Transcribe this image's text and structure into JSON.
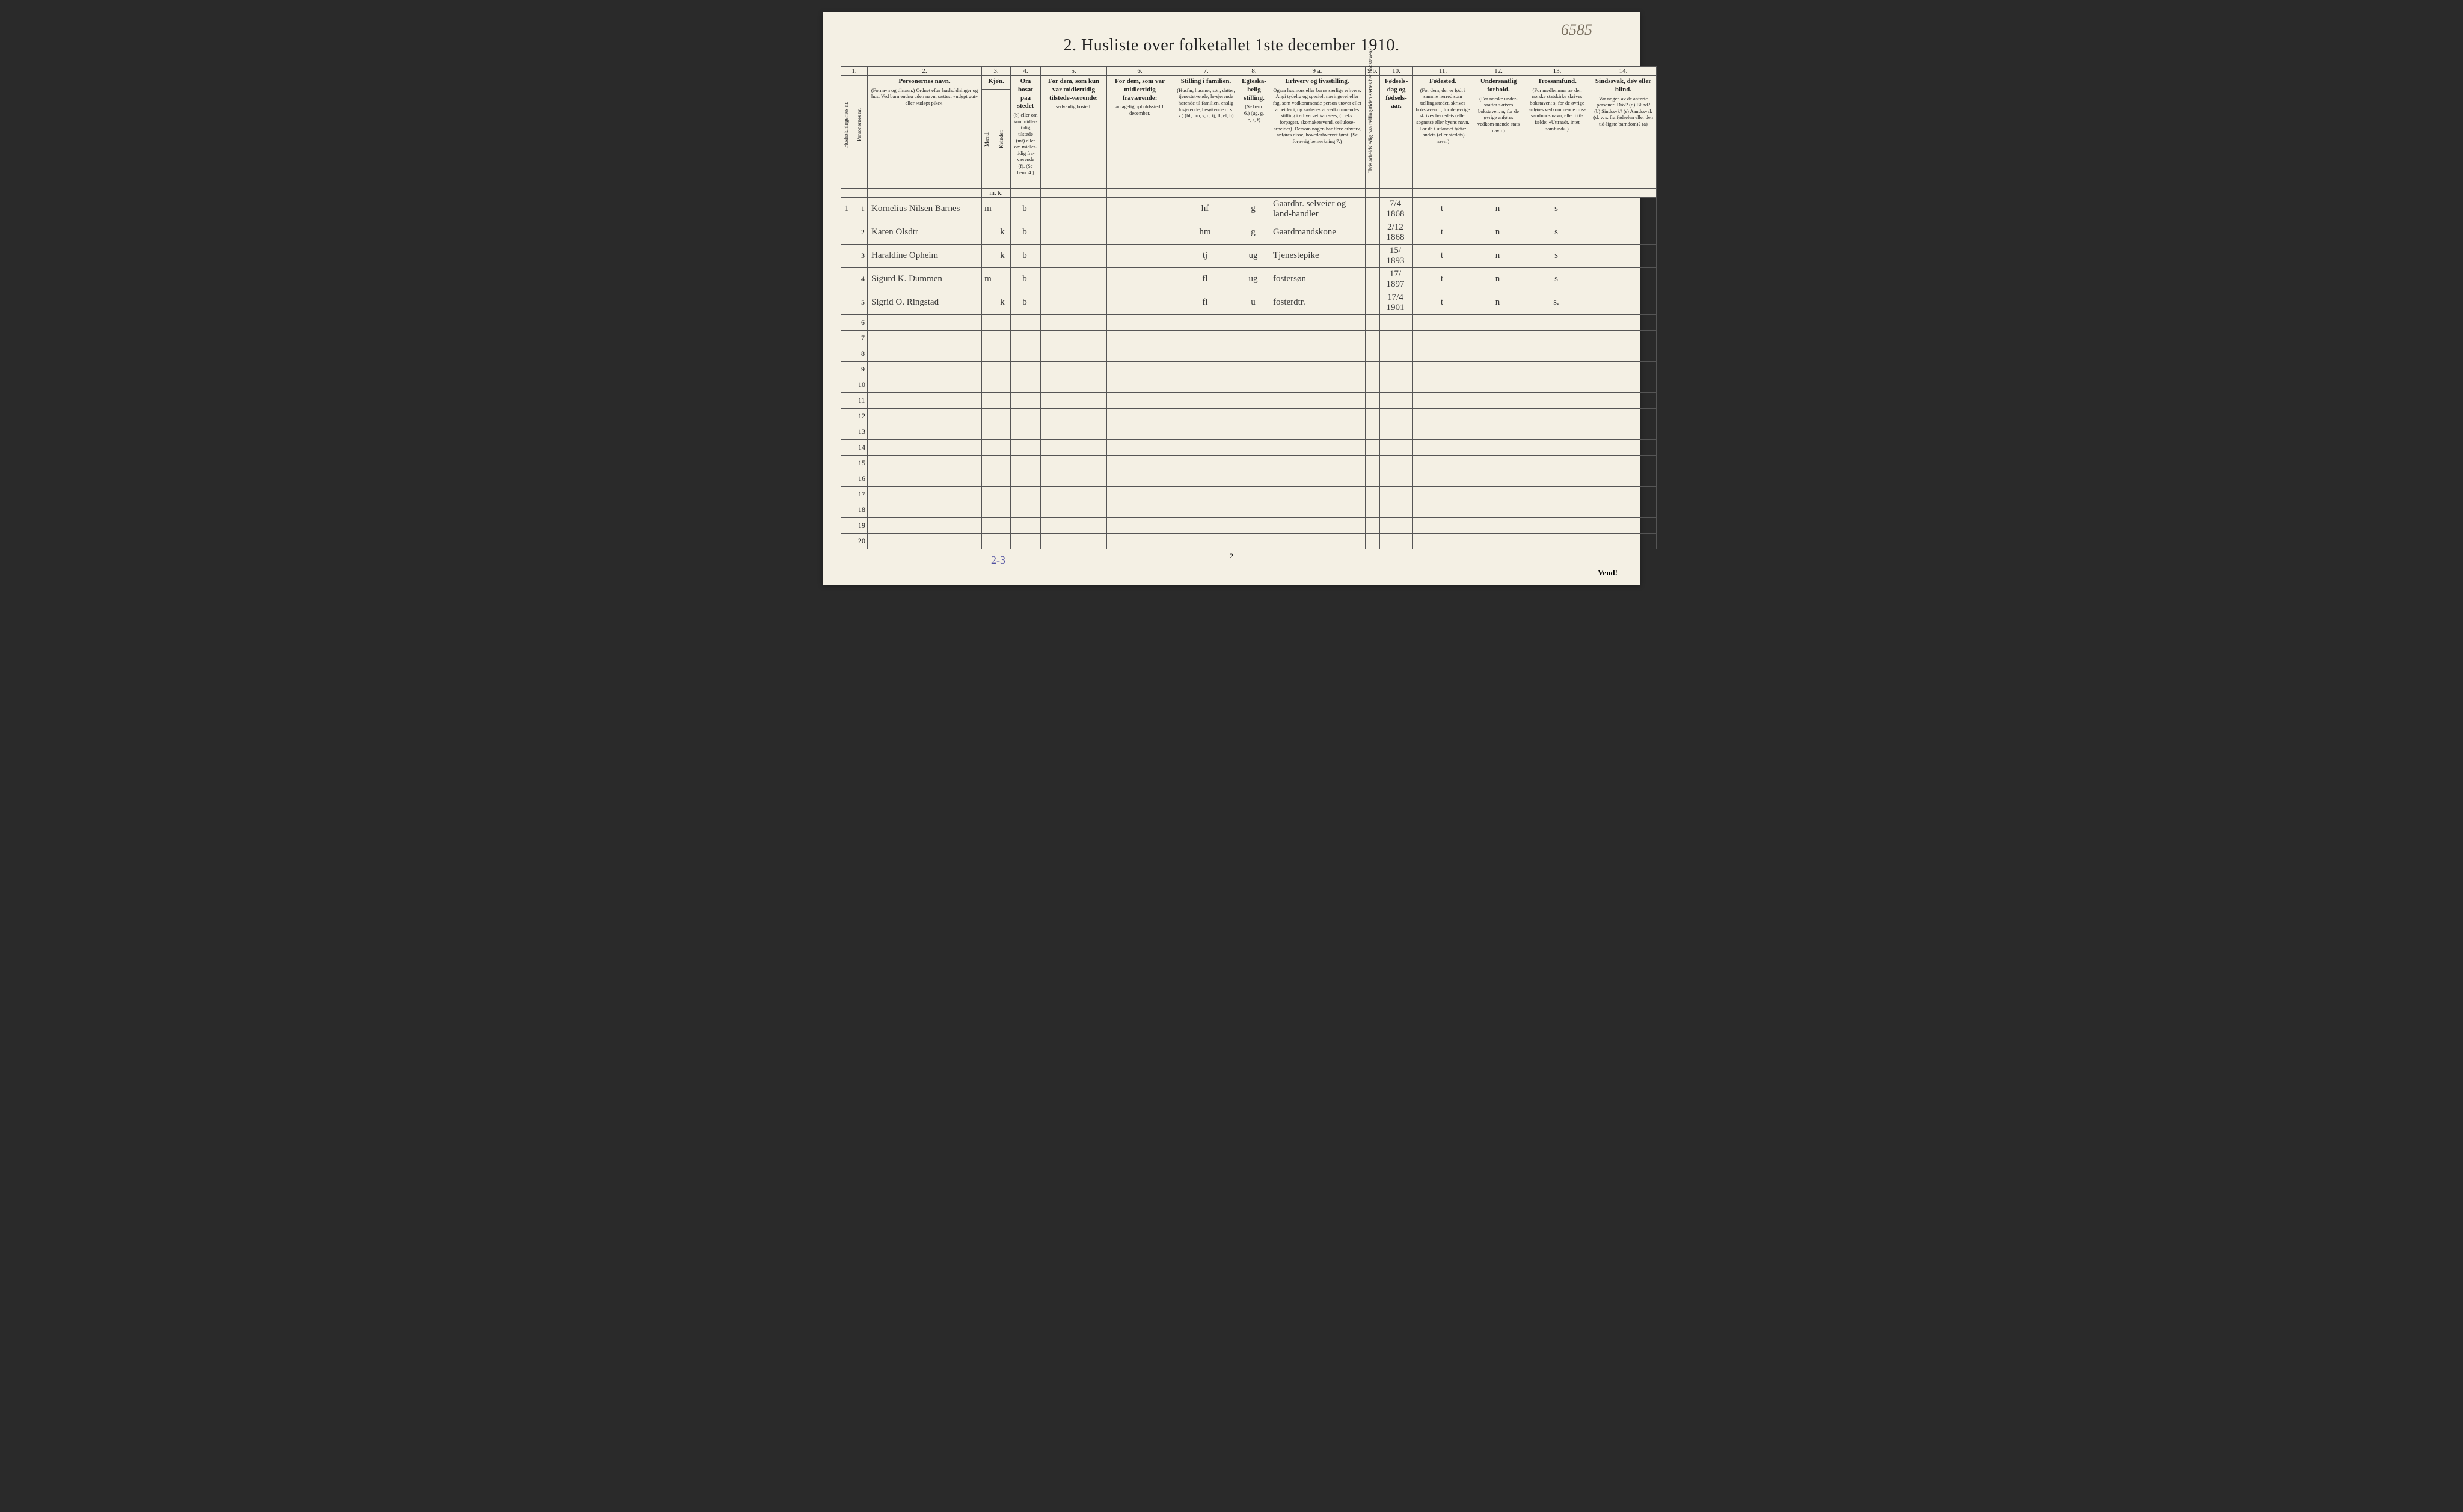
{
  "annotation_top_right": "6585",
  "title": "2. Husliste over folketallet 1ste december 1910.",
  "page_number": "2",
  "vend": "Vend!",
  "footer_annotation": "2-3",
  "column_numbers": [
    "1.",
    "",
    "2.",
    "3.",
    "4.",
    "5.",
    "6.",
    "7.",
    "8.",
    "9 a.",
    "9 b.",
    "10.",
    "11.",
    "12.",
    "13.",
    "14."
  ],
  "headers": {
    "c1": "Husholdningernes nr.",
    "c2": "Personernes nr.",
    "c3_main": "Personernes navn.",
    "c3_sub": "(Fornavn og tilnavn.)\nOrdnet efter husholdninger og hus.\nVed barn endnu uden navn, sættes: «udøpt gut» eller «udøpt pike».",
    "c4_main": "Kjøn.",
    "c4_m": "Mænd.",
    "c4_k": "Kvinder.",
    "c4_foot": "m.  k.",
    "c5_main": "Om bosat paa stedet",
    "c5_sub": "(b) eller om kun midler-tidig tilstede (mt) eller om midler-tidig fra-værende (f).\n(Se bem. 4.)",
    "c6_main": "For dem, som kun var midlertidig tilstede-værende:",
    "c6_sub": "sedvanlig bosted.",
    "c7_main": "For dem, som var midlertidig fraværende:",
    "c7_sub": "antagelig opholdssted 1 december.",
    "c8_main": "Stilling i familien.",
    "c8_sub": "(Husfar, husmor, søn, datter, tjenestetyende, lo-sjerende hørende til familien, enslig losjerende, besøkende o. s. v.)\n(hf, hm, s, d, tj, fl, el, b)",
    "c9_main": "Egteska-belig stilling.",
    "c9_sub": "(Se bem. 6.)\n(ug, g, e, s, f)",
    "c10_main": "Erhverv og livsstilling.",
    "c10_sub": "Ogsaa husmors eller barns særlige erhverv.\nAngi tydelig og specielt næringsvei eller fag, som vedkommende person utøver eller arbeider i, og saaledes at vedkommendes stilling i erhvervet kan sees, (f. eks. forpagter, skomakersvend, cellulose-arbeider). Dersom nogen har flere erhverv, anføres disse, hovederhvervet først.\n(Se forøvrig bemerkning 7.)",
    "c10b": "Hvis arbeidsledig paa tællingstiden sættes her bokstaven: l",
    "c11_main": "Fødsels-dag og fødsels-aar.",
    "c12_main": "Fødested.",
    "c12_sub": "(For dem, der er født i samme herred som tællingsstedet, skrives bokstaven: t; for de øvrige skrives herredets (eller sognets) eller byens navn.\nFor de i utlandet fødte: landets (eller stedets) navn.)",
    "c13_main": "Undersaatlig forhold.",
    "c13_sub": "(For norske under-saatter skrives bokstaven: n; for de øvrige anføres vedkom-mende stats navn.)",
    "c14_main": "Trossamfund.",
    "c14_sub": "(For medlemmer av den norske statskirke skrives bokstaven: s; for de øvrige anføres vedkommende tros-samfunds navn, eller i til-fælde: «Uttraadt, intet samfund».)",
    "c15_main": "Sindssvak, døv eller blind.",
    "c15_sub": "Var nogen av de anførte personer:\nDøv? (d)\nBlind? (b)\nSindssyk? (s)\nAandssvak (d. v. s. fra fødselen eller den tid-ligste barndom)? (a)"
  },
  "rows": [
    {
      "hh": "1",
      "pn": "1",
      "name": "Kornelius Nilsen Barnes",
      "sex": "m",
      "bosat": "b",
      "c6": "",
      "c7": "",
      "fam": "hf",
      "egt": "g",
      "erhverv": "Gaardbr. selveier og land-handler",
      "fdato": "7/4 1868",
      "fsted": "t",
      "und": "n",
      "tros": "s",
      "c15": ""
    },
    {
      "hh": "",
      "pn": "2",
      "name": "Karen Olsdtr",
      "sex": "k",
      "bosat": "b",
      "c6": "",
      "c7": "",
      "fam": "hm",
      "egt": "g",
      "erhverv": "Gaardmandskone",
      "fdato": "2/12 1868",
      "fsted": "t",
      "und": "n",
      "tros": "s",
      "c15": ""
    },
    {
      "hh": "",
      "pn": "3",
      "name": "Haraldine Opheim",
      "sex": "k",
      "bosat": "b",
      "c6": "",
      "c7": "",
      "fam": "tj",
      "egt": "ug",
      "erhverv": "Tjenestepike",
      "fdato": "15/ 1893",
      "fsted": "t",
      "und": "n",
      "tros": "s",
      "c15": ""
    },
    {
      "hh": "",
      "pn": "4",
      "name": "Sigurd K. Dummen",
      "sex": "m",
      "bosat": "b",
      "c6": "",
      "c7": "",
      "fam": "fl",
      "egt": "ug",
      "erhverv": "fostersøn",
      "fdato": "17/ 1897",
      "fsted": "t",
      "und": "n",
      "tros": "s",
      "c15": ""
    },
    {
      "hh": "",
      "pn": "5",
      "name": "Sigrid O. Ringstad",
      "sex": "k",
      "bosat": "b",
      "c6": "",
      "c7": "",
      "fam": "fl",
      "egt": "u",
      "erhverv": "fosterdtr.",
      "fdato": "17/4 1901",
      "fsted": "t",
      "und": "n",
      "tros": "s.",
      "c15": ""
    }
  ],
  "empty_row_count": 15,
  "empty_row_start": 6,
  "colors": {
    "paper": "#f4f0e4",
    "ink": "#222222",
    "handwriting": "#3a3a3a",
    "pencil": "#7a7060",
    "border": "#555555"
  }
}
